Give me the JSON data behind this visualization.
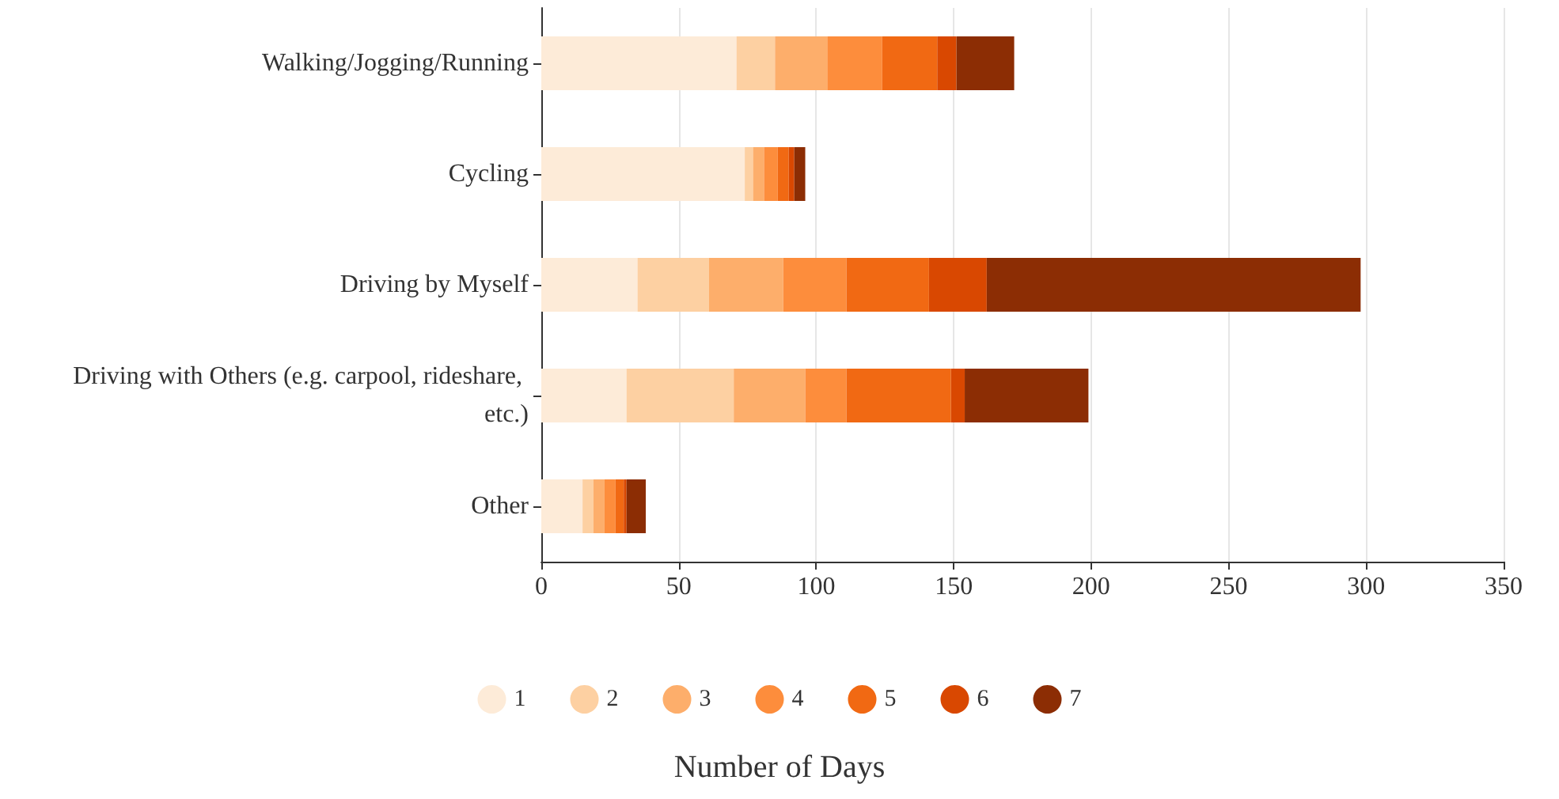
{
  "chart_data": {
    "type": "bar",
    "orientation": "horizontal",
    "stacked": true,
    "categories": [
      "Walking/Jogging/Running",
      "Cycling",
      "Driving by Myself",
      "Driving with Others (e.g. carpool, rideshare, etc.)",
      "Other"
    ],
    "series": [
      {
        "name": "1",
        "color": "#fdebd8",
        "values": [
          71,
          74,
          35,
          31,
          15
        ]
      },
      {
        "name": "2",
        "color": "#fdd0a2",
        "values": [
          14,
          3,
          26,
          39,
          4
        ]
      },
      {
        "name": "3",
        "color": "#fdae6b",
        "values": [
          19,
          4,
          27,
          26,
          4
        ]
      },
      {
        "name": "4",
        "color": "#fd8d3c",
        "values": [
          20,
          5,
          23,
          15,
          4
        ]
      },
      {
        "name": "5",
        "color": "#f16913",
        "values": [
          20,
          4,
          30,
          38,
          3
        ]
      },
      {
        "name": "6",
        "color": "#d94801",
        "values": [
          7,
          2,
          21,
          5,
          1
        ]
      },
      {
        "name": "7",
        "color": "#8c2d04",
        "values": [
          21,
          4,
          136,
          45,
          7
        ]
      }
    ],
    "xlim": [
      0,
      350
    ],
    "xticks": [
      0,
      50,
      100,
      150,
      200,
      250,
      300,
      350
    ],
    "grid": "x",
    "legend": "bottom",
    "legend_title": "Number of Days"
  }
}
